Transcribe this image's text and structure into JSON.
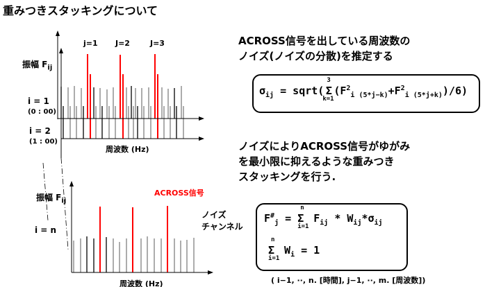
{
  "title": "重みつきスタッキングについて",
  "top_chart": {
    "j_labels": [
      "j=1",
      "J=2",
      "J=3"
    ],
    "ylabel": "振幅 F",
    "ylabel_sub": "ij",
    "row1": {
      "label": "i = 1",
      "time": "(0 : 00)"
    },
    "row2": {
      "label": "i = 2",
      "time": "(1 : 00)"
    },
    "xlabel": "周波数 (Hz)"
  },
  "bottom_chart": {
    "ylabel": "振幅 F",
    "ylabel_sub": "ij",
    "row_label": "i = n",
    "signal_label": "ACROSS信号",
    "noise_label_1": "ノイズ",
    "noise_label_2": "チャンネル",
    "xlabel": "周波数 (Hz)"
  },
  "right": {
    "para1": [
      "ACROSS信号を出している周波数の",
      "ノイズ(ノイズの分散)を推定する"
    ],
    "formula1": {
      "lhs": "σ",
      "lhs_sub": "ij",
      "eq": " = sqrt(",
      "sum_top": "3",
      "sum_bot": "k=1",
      "body1": "(F",
      "sup": "2",
      "sub1": "i (5*j−k)",
      "plus": "+F",
      "sub2": "i (5*j+k)",
      "end": ")/6)"
    },
    "para2": [
      "ノイズによりACROSS信号がゆがみ",
      "を最小限に抑えるような重みつき",
      "スタッキングを行う."
    ],
    "formula2": {
      "lhs": "F",
      "lhs_sup": "#",
      "lhs_sub": "j",
      "eq": " = ",
      "sum_top": "n",
      "sum_bot": "i=1",
      "body": " F",
      "body_sub": "ij",
      "mid": " * W",
      "mid_sub": "ij",
      "end": "*σ",
      "end_sub": "ij"
    },
    "formula3": {
      "sum_top": "n",
      "sum_bot": "i=1",
      "body": " W",
      "body_sub": "i",
      "end": " = 1"
    },
    "note": "( i−1, ··, n. [時間], j−1, ··, m. [周波数])"
  },
  "colors": {
    "signal": "#ff0000",
    "noise_dark": "#000000",
    "noise_gray": "#808080"
  }
}
